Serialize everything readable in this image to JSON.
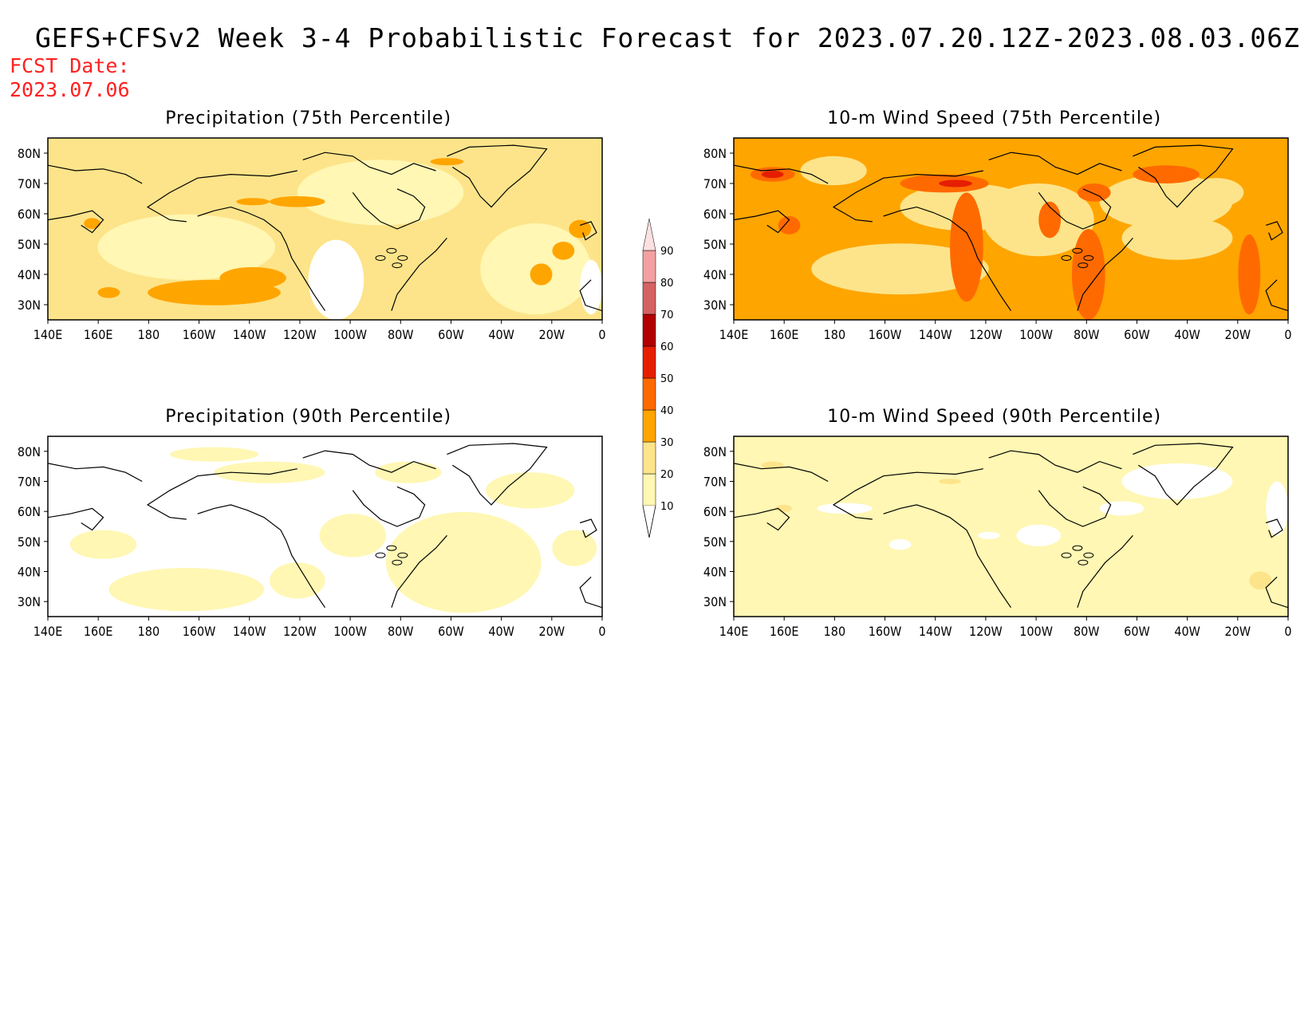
{
  "header": {
    "title": "GEFS+CFSv2 Week 3-4 Probabilistic Forecast for 2023.07.20.12Z-2023.08.03.06Z",
    "fcst_label": "FCST Date:",
    "fcst_value": "2023.07.06"
  },
  "axes": {
    "lon_ticks": [
      "140E",
      "160E",
      "180",
      "160W",
      "140W",
      "120W",
      "100W",
      "80W",
      "60W",
      "40W",
      "20W",
      "0"
    ],
    "lat_ticks": [
      "80N",
      "70N",
      "60N",
      "50N",
      "40N",
      "30N"
    ],
    "lon_range": [
      140,
      360
    ],
    "lat_range": [
      25,
      85
    ]
  },
  "colorbar": {
    "levels": [
      "10",
      "20",
      "30",
      "40",
      "50",
      "60",
      "70",
      "80",
      "90"
    ],
    "colors": [
      "#ffffff",
      "#fff7b3",
      "#fde48a",
      "#ffa500",
      "#ff6a00",
      "#e61e00",
      "#b30000",
      "#d46262",
      "#f2a0a0",
      "#fde0e0"
    ]
  },
  "panels": [
    {
      "id": "precip-75",
      "title": "Precipitation (75th Percentile)",
      "base_color": "#fde48a"
    },
    {
      "id": "wind-75",
      "title": "10-m Wind Speed (75th Percentile)",
      "base_color": "#ffa500"
    },
    {
      "id": "precip-90",
      "title": "Precipitation (90th Percentile)",
      "base_color": "#ffffff"
    },
    {
      "id": "wind-90",
      "title": "10-m Wind Speed (90th Percentile)",
      "base_color": "#fff7b3"
    }
  ]
}
